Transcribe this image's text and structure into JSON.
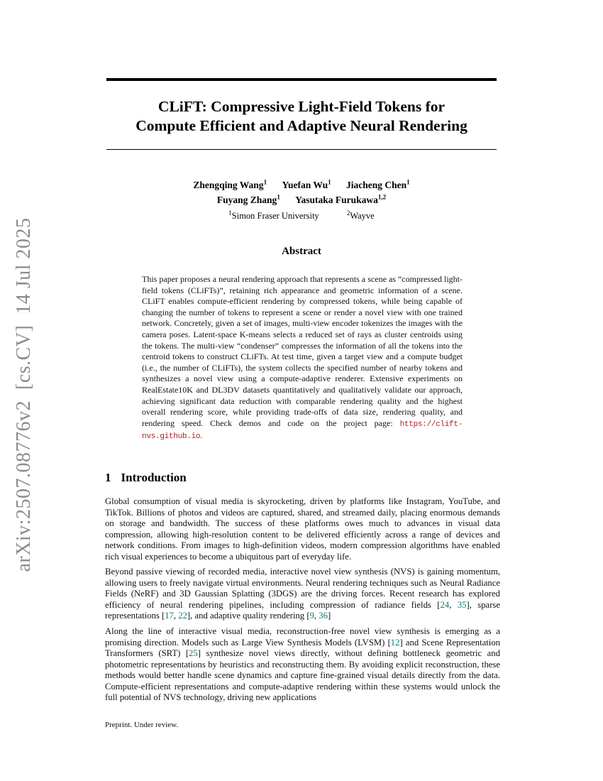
{
  "colors": {
    "citation": "#0c7a74",
    "url": "#b22222",
    "sidebar_gray": "#8b8b8b"
  },
  "page": {
    "sidebar_label": "arXiv:2507.08776v2  [cs.CV]  14 Jul 2025",
    "footer": "Preprint. Under review."
  },
  "title": {
    "line1": "CLiFT: Compressive Light-Field Tokens for",
    "line2": "Compute Efficient and Adaptive Neural Rendering"
  },
  "authors": {
    "row1": [
      {
        "name": "Zhengqing Wang",
        "sup": "1"
      },
      {
        "name": "Yuefan Wu",
        "sup": "1"
      },
      {
        "name": "Jiacheng Chen",
        "sup": "1"
      }
    ],
    "row2": [
      {
        "name": "Fuyang Zhang",
        "sup": "1"
      },
      {
        "name": "Yasutaka Furukawa",
        "sup": "1,2"
      }
    ]
  },
  "affiliations": [
    {
      "sup": "1",
      "name": "Simon Fraser University"
    },
    {
      "sup": "2",
      "name": "Wayve"
    }
  ],
  "abstract": {
    "heading": "Abstract",
    "segments": [
      {
        "t": "This paper proposes a neural rendering approach that represents a scene as “compressed light-field tokens (CLiFTs)”, retaining rich appearance and geometric information of a scene. CLiFT enables compute-efficient rendering by compressed tokens, while being capable of changing the number of tokens to represent a scene or render a novel view with one trained network. Concretely, given a set of images, multi-view encoder tokenizes the images with the camera poses. Latent-space K-means selects a reduced set of rays as cluster centroids using the tokens. The multi-view “condenser” compresses the information of all the tokens into the centroid tokens to construct CLiFTs. At test time, given a target view and a compute budget (i.e., the number of CLiFTs), the system collects the specified number of nearby tokens and synthesizes a novel view using a compute-adaptive renderer. Extensive experiments on RealEstate10K and DL3DV datasets quantitatively and qualitatively validate our approach, achieving significant data reduction with comparable rendering quality and the highest overall rendering score, while providing trade-offs of data size, rendering quality, and rendering speed. Check demos and code on the project page: "
      },
      {
        "t": "https://clift-nvs.github.io",
        "c": "url"
      },
      {
        "t": "."
      }
    ]
  },
  "sections": {
    "intro": {
      "number": "1",
      "title": "Introduction"
    }
  },
  "paragraphs": {
    "p1": {
      "segments": [
        {
          "t": "Global consumption of visual media is skyrocketing, driven by platforms like Instagram, YouTube, and TikTok. Billions of photos and videos are captured, shared, and streamed daily, placing enormous demands on storage and bandwidth. The success of these platforms owes much to advances in visual data compression, allowing high-resolution content to be delivered efficiently across a range of devices and network conditions. From images to high-definition videos, modern compression algorithms have enabled rich visual experiences to become a ubiquitous part of everyday life."
        }
      ]
    },
    "p2": {
      "segments": [
        {
          "t": "Beyond passive viewing of recorded media, interactive novel view synthesis (NVS) is gaining momentum, allowing users to freely navigate virtual environments. Neural rendering techniques such as Neural Radiance Fields (NeRF) and 3D Gaussian Splatting (3DGS) are the driving forces. Recent research has explored efficiency of neural rendering pipelines, including compression of radiance fields ["
        },
        {
          "t": "24",
          "c": "cite"
        },
        {
          "t": ", "
        },
        {
          "t": "35",
          "c": "cite"
        },
        {
          "t": "], sparse representations ["
        },
        {
          "t": "17",
          "c": "cite"
        },
        {
          "t": ", "
        },
        {
          "t": "22",
          "c": "cite"
        },
        {
          "t": "], and adaptive quality rendering ["
        },
        {
          "t": "9",
          "c": "cite"
        },
        {
          "t": ", "
        },
        {
          "t": "36",
          "c": "cite"
        },
        {
          "t": "]"
        }
      ]
    },
    "p3": {
      "segments": [
        {
          "t": "Along the line of interactive visual media, reconstruction-free novel view synthesis is emerging as a promising direction. Models such as Large View Synthesis Models (LVSM) ["
        },
        {
          "t": "12",
          "c": "cite"
        },
        {
          "t": "] and Scene Representation Transformers (SRT) ["
        },
        {
          "t": "25",
          "c": "cite"
        },
        {
          "t": "] synthesize novel views directly, without defining bottleneck geometric and photometric representations by heuristics and reconstructing them. By avoiding explicit reconstruction, these methods would better handle scene dynamics and capture fine-grained visual details directly from the data. Compute-efficient representations and compute-adaptive rendering within these systems would unlock the full potential of NVS technology, driving new applications"
        }
      ]
    }
  }
}
